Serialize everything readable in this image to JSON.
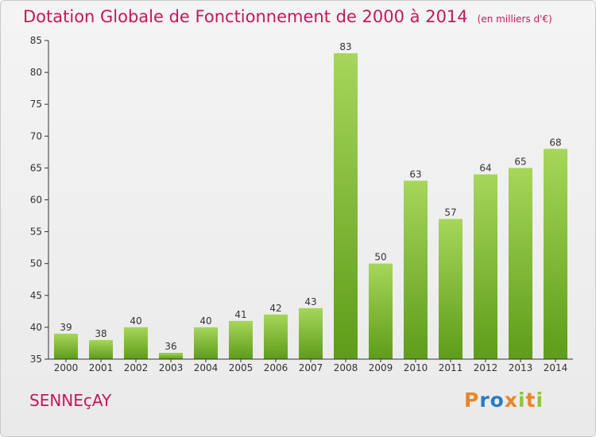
{
  "title": "Dotation Globale de Fonctionnement de 2000 à 2014",
  "unit_note": "(en milliers d'€)",
  "commune": "SENNEçAY",
  "logo": {
    "text": "Proxiti",
    "colors": [
      "#e8862a",
      "#2b7bc4",
      "#2b7bc4",
      "#e8862a",
      "#8cc63f",
      "#e8862a",
      "#8cc63f"
    ]
  },
  "colors": {
    "title": "#c2185b",
    "bar_top": "#a6d65a",
    "bar_bottom": "#5e9c1a",
    "axis": "#333333"
  },
  "chart_data": {
    "type": "bar",
    "categories": [
      "2000",
      "2001",
      "2002",
      "2003",
      "2004",
      "2005",
      "2006",
      "2007",
      "2008",
      "2009",
      "2010",
      "2011",
      "2012",
      "2013",
      "2014"
    ],
    "values": [
      39,
      38,
      40,
      36,
      40,
      41,
      42,
      43,
      83,
      50,
      63,
      57,
      64,
      65,
      68
    ],
    "ylim": [
      35,
      85
    ],
    "yticks": [
      35,
      40,
      45,
      50,
      55,
      60,
      65,
      70,
      75,
      80,
      85
    ],
    "grid": false,
    "data_labels": true
  }
}
